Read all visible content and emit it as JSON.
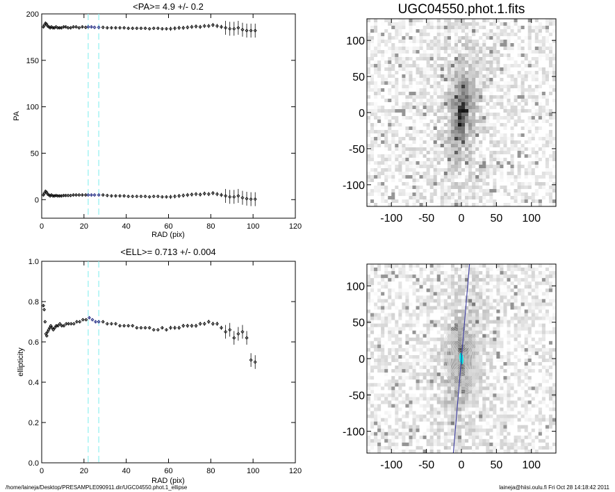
{
  "chart_data": [
    {
      "type": "scatter",
      "title": "<PA>=   4.9 +/-   0.2",
      "xlabel": "RAD (pix)",
      "ylabel": "PA",
      "xlim": [
        0,
        120
      ],
      "ylim": [
        -20,
        200
      ],
      "xticks": [
        "0",
        "20",
        "40",
        "60",
        "80",
        "100",
        "120"
      ],
      "yticks": [
        "0",
        "50",
        "100",
        "150",
        "200"
      ],
      "marker_color": "#000000",
      "highlight_color": "#1a237e",
      "vlines": {
        "x": [
          22,
          27
        ],
        "color": "#8ff0f0",
        "style": "dashed"
      },
      "series": [
        {
          "x": [
            0.8,
            1.3,
            1.8,
            2.3,
            2.8,
            3.4,
            4.0,
            4.6,
            5.3,
            6.0,
            6.8,
            7.6,
            8.5,
            9.4,
            10.4,
            11.4,
            12.5,
            13.7,
            15.0,
            16.3,
            17.7,
            19.2,
            20.8,
            22.0,
            23.5,
            25.0,
            27.0,
            29.0,
            31.0,
            33.0,
            35.0,
            37.0,
            39.0,
            41.0,
            43.0,
            45.0,
            47.0,
            49.0,
            51.0,
            53.0,
            55.0,
            57.0,
            59.0,
            61.0,
            63.0,
            65.0,
            67.0,
            69.0,
            71.0,
            73.0,
            75.0,
            77.0,
            79.0,
            81.0,
            83.0,
            85.0,
            87.0,
            89.0,
            91.0,
            93.0,
            95.0,
            97.0,
            99.0,
            101.0
          ],
          "y": [
            186,
            188,
            190,
            189,
            187,
            186,
            185,
            186,
            185,
            185,
            186,
            185,
            185,
            185,
            186,
            186,
            185,
            185,
            186,
            186,
            185,
            186,
            185.5,
            186,
            186,
            185.5,
            185.5,
            185.5,
            185,
            185,
            185,
            185,
            185,
            184.5,
            184.5,
            184.5,
            184.5,
            184.5,
            184,
            184.5,
            184.5,
            184,
            184,
            184,
            184.5,
            185,
            185,
            185.5,
            186,
            186.5,
            186,
            187,
            187,
            188,
            187,
            186,
            185,
            184,
            184,
            185,
            183,
            182,
            182,
            182
          ]
        },
        {
          "x": [
            0.8,
            1.3,
            1.8,
            2.3,
            2.8,
            3.4,
            4.0,
            4.6,
            5.3,
            6.0,
            6.8,
            7.6,
            8.5,
            9.4,
            10.4,
            11.4,
            12.5,
            13.7,
            15.0,
            16.3,
            17.7,
            19.2,
            20.8,
            22.0,
            23.5,
            25.0,
            27.0,
            29.0,
            31.0,
            33.0,
            35.0,
            37.0,
            39.0,
            41.0,
            43.0,
            45.0,
            47.0,
            49.0,
            51.0,
            53.0,
            55.0,
            57.0,
            59.0,
            61.0,
            63.0,
            65.0,
            67.0,
            69.0,
            71.0,
            73.0,
            75.0,
            77.0,
            79.0,
            81.0,
            83.0,
            85.0,
            87.0,
            89.0,
            91.0,
            93.0,
            95.0,
            97.0,
            99.0,
            101.0
          ],
          "y": [
            5,
            7,
            9,
            8,
            6,
            5,
            4,
            5,
            4,
            4,
            4.5,
            4,
            4,
            4,
            4.5,
            4.5,
            4.5,
            4.5,
            5,
            5,
            5,
            5,
            5,
            5,
            5,
            5,
            5,
            5,
            4.5,
            4,
            4,
            4,
            4,
            3.5,
            3.5,
            3.5,
            3.5,
            3.5,
            3,
            3.5,
            3.5,
            3,
            3,
            3,
            3.5,
            4,
            4.5,
            5,
            5.5,
            6,
            5.5,
            6.5,
            6,
            7,
            6,
            5,
            4,
            3,
            3,
            4,
            2,
            1,
            0.5,
            0.5
          ]
        }
      ]
    },
    {
      "type": "scatter",
      "title": "<ELL>= 0.713 +/-  0.004",
      "xlabel": "RAD (pix)",
      "ylabel": "ellipticity",
      "xlim": [
        0,
        120
      ],
      "ylim": [
        0,
        1.0
      ],
      "xticks": [
        "0",
        "20",
        "40",
        "60",
        "80",
        "100",
        "120"
      ],
      "yticks": [
        "0.0",
        "0.2",
        "0.4",
        "0.6",
        "0.8",
        "1.0"
      ],
      "marker_color": "#000000",
      "highlight_color": "#1a237e",
      "vlines": {
        "x": [
          22,
          27
        ],
        "color": "#8ff0f0",
        "style": "dashed"
      },
      "series": [
        {
          "x": [
            0.8,
            1.2,
            1.6,
            2.0,
            2.4,
            2.8,
            3.3,
            3.8,
            4.3,
            4.9,
            5.5,
            6.2,
            6.9,
            7.7,
            8.6,
            9.5,
            10.5,
            11.6,
            12.7,
            13.9,
            15.2,
            16.6,
            18.0,
            19.5,
            21.0,
            22.5,
            24.0,
            25.5,
            27.0,
            29.0,
            31.0,
            33.0,
            35.0,
            37.0,
            39.0,
            41.0,
            43.0,
            45.0,
            47.0,
            49.0,
            51.0,
            53.0,
            55.0,
            57.0,
            59.0,
            61.0,
            63.0,
            65.0,
            67.0,
            69.0,
            71.0,
            73.0,
            75.0,
            77.0,
            79.0,
            81.0,
            83.0,
            85.0,
            87.0,
            89.0,
            91.0,
            93.0,
            95.0,
            97.0,
            99.0,
            101.0
          ],
          "y": [
            0.78,
            0.76,
            0.7,
            0.64,
            0.63,
            0.65,
            0.66,
            0.67,
            0.68,
            0.67,
            0.66,
            0.67,
            0.68,
            0.68,
            0.69,
            0.68,
            0.68,
            0.69,
            0.69,
            0.69,
            0.69,
            0.7,
            0.7,
            0.71,
            0.71,
            0.72,
            0.71,
            0.7,
            0.7,
            0.7,
            0.69,
            0.69,
            0.69,
            0.68,
            0.68,
            0.68,
            0.68,
            0.67,
            0.67,
            0.67,
            0.67,
            0.66,
            0.66,
            0.67,
            0.66,
            0.67,
            0.67,
            0.67,
            0.68,
            0.68,
            0.68,
            0.68,
            0.69,
            0.69,
            0.7,
            0.69,
            0.69,
            0.67,
            0.65,
            0.66,
            0.62,
            0.64,
            0.65,
            0.62,
            0.51,
            0.5
          ]
        }
      ]
    },
    {
      "type": "heatmap",
      "title": "UGC04550.phot.1.fits",
      "xlim": [
        -135,
        135
      ],
      "ylim": [
        -130,
        130
      ],
      "xticks": [
        "-100",
        "-50",
        "0",
        "50",
        "100"
      ],
      "yticks": [
        "-100",
        "-50",
        "0",
        "50",
        "100"
      ],
      "colormap": "greyscale-inverted",
      "source": {
        "position_angle_deg": 4.9,
        "ellipticity": 0.713
      }
    },
    {
      "type": "heatmap",
      "title": "",
      "xlim": [
        -135,
        135
      ],
      "ylim": [
        -130,
        130
      ],
      "xticks": [
        "-100",
        "-50",
        "0",
        "50",
        "100"
      ],
      "yticks": [
        "-100",
        "-50",
        "0",
        "50",
        "100"
      ],
      "colormap": "greyscale-inverted",
      "overlay": {
        "contour_color": "#d9d9d9",
        "inner_contour_color": "#00e5e5",
        "major_axis_color": "#3a3aa0"
      }
    }
  ],
  "footer": {
    "left": "/home/laineja/Desktop/PRESAMPLE090911.dir/UGC04550.phot.1_ellipse",
    "right": "laineja@hiisi.oulu.fi  Fri Oct 28 14:18:42 2011"
  }
}
